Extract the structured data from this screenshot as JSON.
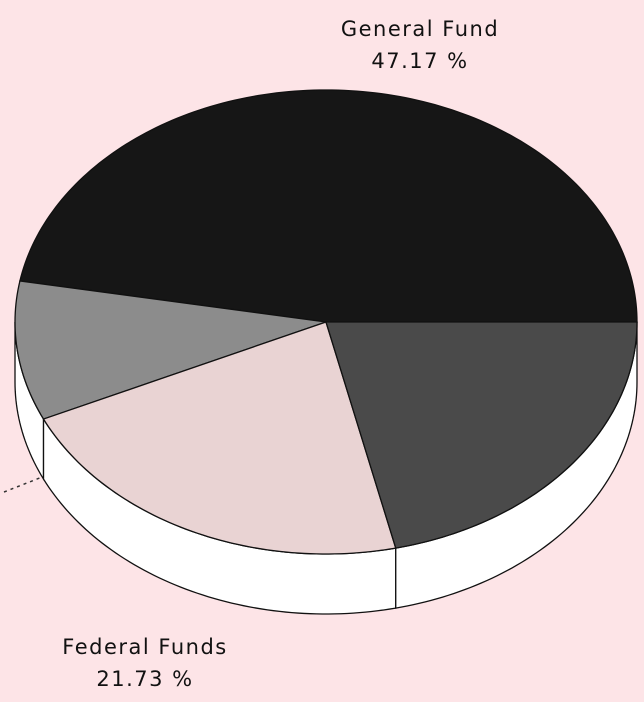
{
  "chart_data": {
    "type": "pie",
    "categories": [
      "General Fund",
      null,
      "Federal Funds",
      null
    ],
    "values": [
      47.17,
      9.7,
      21.73,
      21.4
    ],
    "value_labels": [
      "47.17 %",
      null,
      "21.73 %",
      null
    ],
    "colors": [
      "#161616",
      "#8c8c8c",
      "#e9d3d3",
      "#4a4a4a"
    ]
  }
}
